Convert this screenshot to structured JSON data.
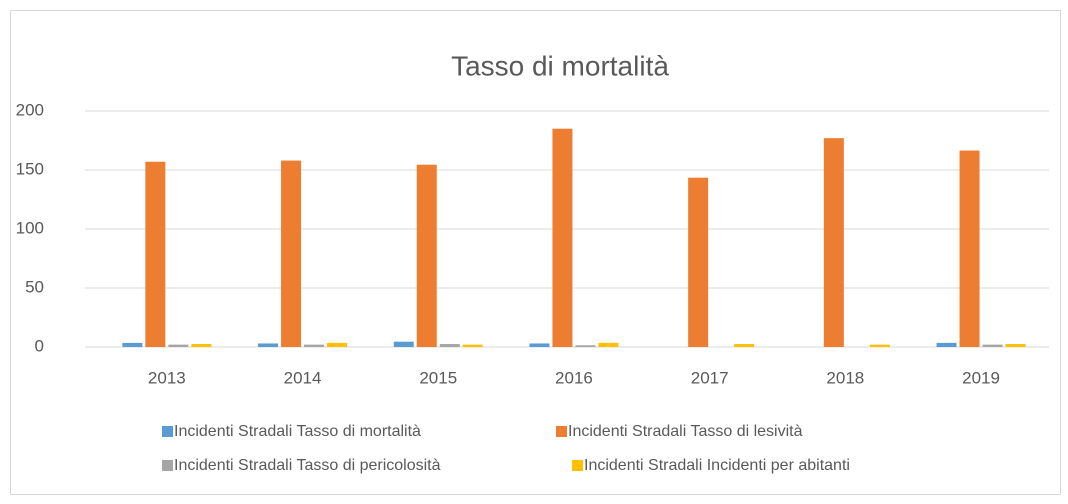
{
  "chart_data": {
    "type": "bar",
    "title": "Tasso di mortalità",
    "categories": [
      "2013",
      "2014",
      "2015",
      "2016",
      "2017",
      "2018",
      "2019"
    ],
    "series": [
      {
        "name": "Incidenti Stradali Tasso di mortalità",
        "color": "#5b9bd5",
        "values": [
          3.5,
          3,
          4.5,
          3,
          null,
          null,
          3.5
        ]
      },
      {
        "name": "Incidenti Stradali Tasso di lesività",
        "color": "#ed7d31",
        "values": [
          157,
          158,
          154.5,
          185,
          143.5,
          177,
          166.5
        ]
      },
      {
        "name": "Incidenti Stradali Tasso di pericolosità",
        "color": "#a5a5a5",
        "values": [
          2,
          2,
          2.5,
          1.5,
          null,
          null,
          2
        ]
      },
      {
        "name": "Incidenti Stradali Incidenti per abitanti",
        "color": "#ffc000",
        "values": [
          2.5,
          3.5,
          2,
          3.5,
          2.5,
          2,
          2.5
        ]
      }
    ],
    "ylim": [
      0,
      200
    ],
    "yticks": [
      0,
      50,
      100,
      150,
      200
    ],
    "grid": true,
    "legend": "bottom"
  }
}
